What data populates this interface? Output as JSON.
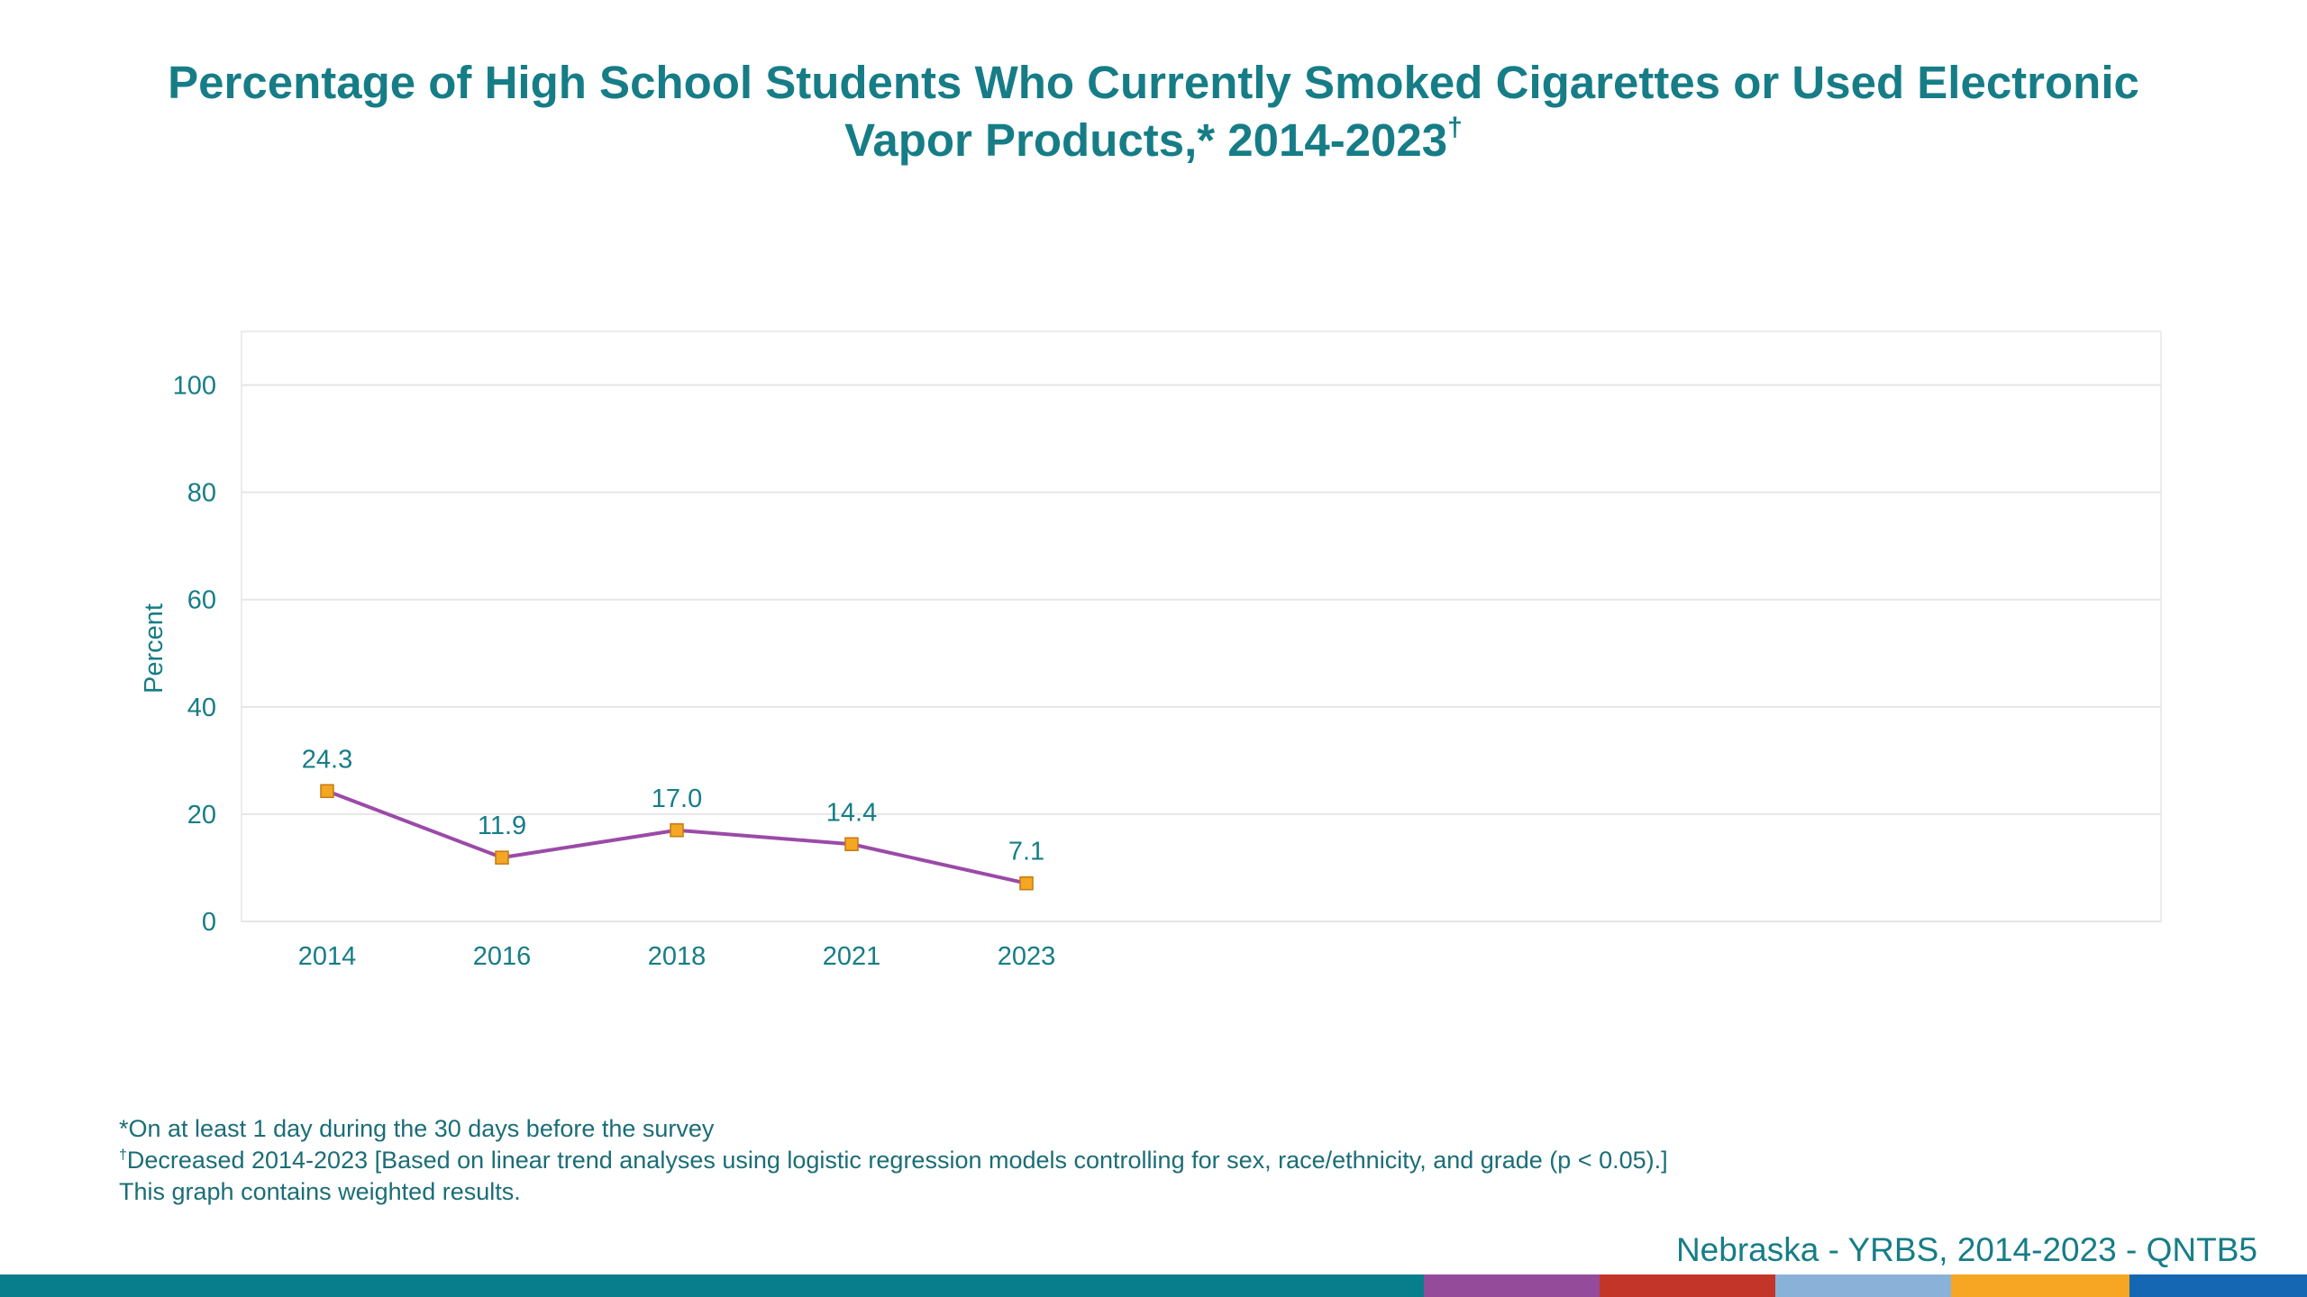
{
  "chart_data": {
    "type": "line",
    "title": "Percentage of High School Students Who Currently Smoked Cigarettes or Used Electronic Vapor Products,* 2014-2023",
    "title_mark": "†",
    "ylabel": "Percent",
    "xlabel": "",
    "ylim": [
      0,
      110
    ],
    "yticks": [
      0,
      20,
      40,
      60,
      80,
      100
    ],
    "grid": true,
    "legend": "none",
    "categories": [
      "2014",
      "2016",
      "2018",
      "2021",
      "2023"
    ],
    "series": [
      {
        "values": [
          24.3,
          11.9,
          17.0,
          14.4,
          7.1
        ],
        "labels": [
          "24.3",
          "11.9",
          "17.0",
          "14.4",
          "7.1"
        ],
        "line_color": "#9b4aa8",
        "marker_color": "#f5a623"
      }
    ]
  },
  "footnotes": {
    "note1_mark": "*",
    "note1": "On at least 1 day during the 30 days before the survey",
    "note2_mark": "†",
    "note2": "Decreased 2014-2023 [Based on linear trend analyses using logistic regression models controlling for sex, race/ethnicity, and grade (p < 0.05).]",
    "note3": "This graph contains weighted results."
  },
  "source": "Nebraska - YRBS, 2014-2023 - QNTB5",
  "colors": {
    "text": "#167d87",
    "gridline": "#e6e6e6",
    "bottom_bar": [
      "#087d8c",
      "#934b9a",
      "#c33529",
      "#8ab2d8",
      "#f6a623",
      "#1567b4"
    ]
  }
}
